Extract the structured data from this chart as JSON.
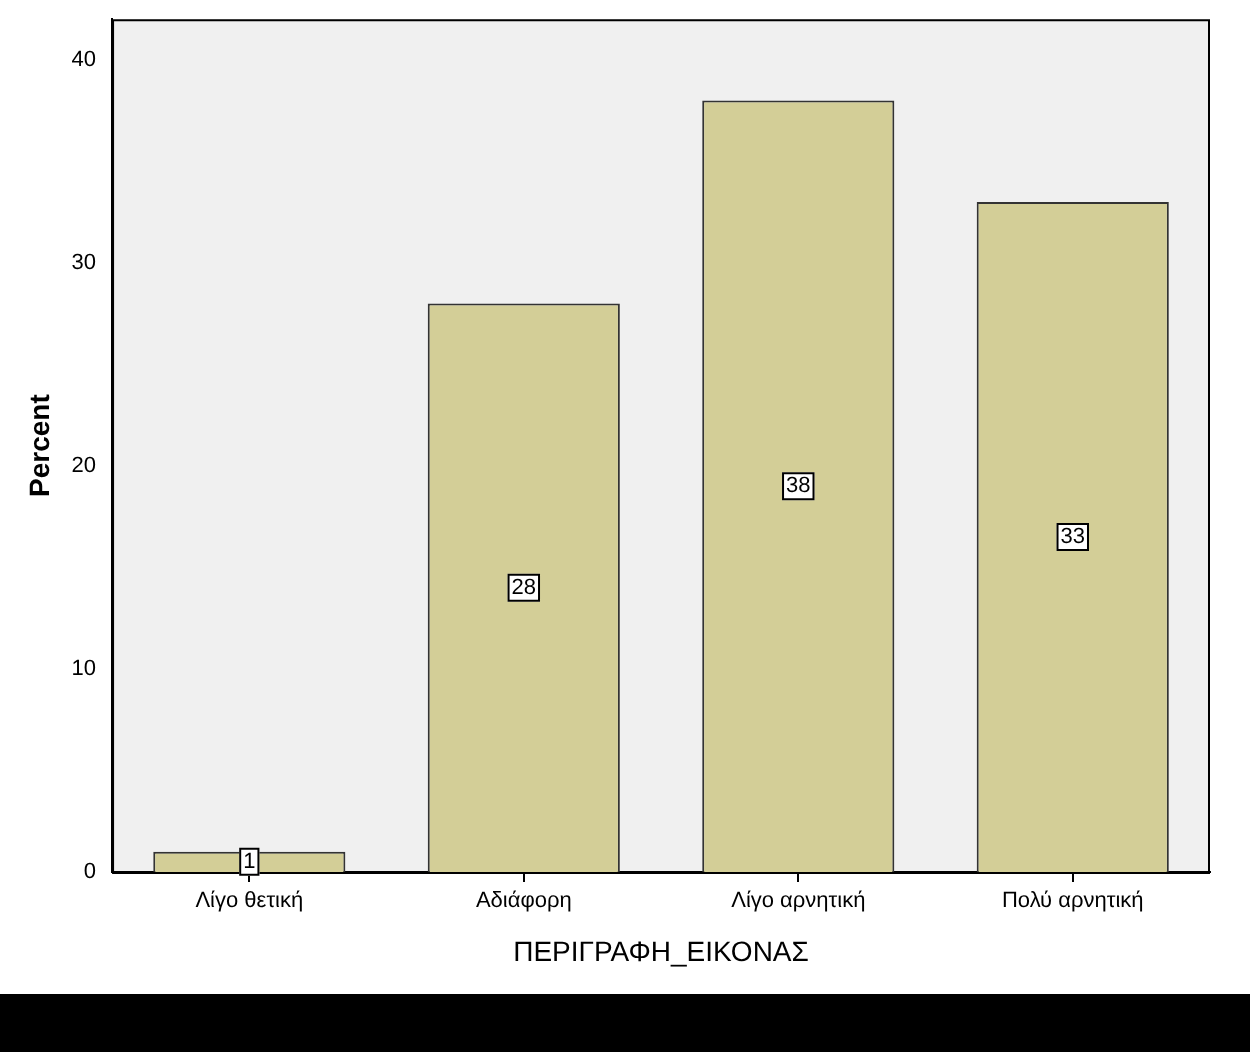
{
  "chart_data": {
    "type": "bar",
    "xlabel": "ΠΕΡΙΓΡΑΦΗ_ΕΙΚΟΝΑΣ",
    "ylabel": "Percent",
    "categories": [
      "Λίγο θετική",
      "Αδιάφορη",
      "Λίγο αρνητική",
      "Πολύ αρνητική"
    ],
    "values": [
      1,
      28,
      38,
      33
    ],
    "color": "#d3ce97",
    "ylim": [
      0,
      42
    ],
    "yticks": [
      0,
      10,
      20,
      30,
      40
    ],
    "grid": false,
    "legend": false,
    "data_labels": true
  }
}
